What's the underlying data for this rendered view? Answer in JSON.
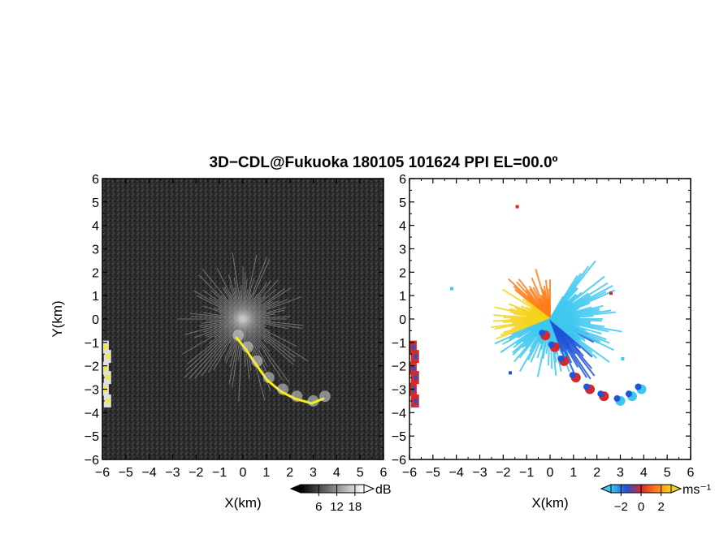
{
  "figure": {
    "title": "3D−CDL@Fukuoka 180105 101624 PPI EL=00.0º"
  },
  "chart_data": [
    {
      "type": "heatmap",
      "panel": "reflectivity",
      "xlabel": "X(km)",
      "ylabel": "Y(km)",
      "xlim": [
        -6,
        6
      ],
      "ylim": [
        -6,
        6
      ],
      "xticks": [
        -6,
        -5,
        -4,
        -3,
        -2,
        -1,
        0,
        1,
        2,
        3,
        4,
        5,
        6
      ],
      "yticks": [
        -6,
        -5,
        -4,
        -3,
        -2,
        -1,
        0,
        1,
        2,
        3,
        4,
        5,
        6
      ],
      "background_color": "#2b2b2b",
      "highlight_color": "#f5f014",
      "colorbar": {
        "unit": "dB",
        "ticks": [
          6,
          12,
          18
        ],
        "range": [
          0,
          21
        ],
        "colors": [
          "#000000",
          "#ffffff"
        ]
      },
      "features": {
        "radial_spokes_from_origin": true,
        "arc_points": [
          [
            -0.2,
            -0.7
          ],
          [
            0.2,
            -1.2
          ],
          [
            0.6,
            -1.8
          ],
          [
            1.1,
            -2.5
          ],
          [
            1.7,
            -3.0
          ],
          [
            2.3,
            -3.3
          ],
          [
            3.0,
            -3.5
          ],
          [
            3.5,
            -3.3
          ]
        ],
        "left_edge_points": [
          [
            -5.9,
            -1.2
          ],
          [
            -5.8,
            -1.6
          ],
          [
            -5.9,
            -2.1
          ],
          [
            -5.8,
            -2.5
          ],
          [
            -5.9,
            -3.0
          ],
          [
            -5.8,
            -3.5
          ]
        ]
      }
    },
    {
      "type": "heatmap",
      "panel": "doppler_velocity",
      "xlabel": "X(km)",
      "ylabel": "",
      "xlim": [
        -6,
        6
      ],
      "ylim": [
        -6,
        6
      ],
      "xticks": [
        -6,
        -5,
        -4,
        -3,
        -2,
        -1,
        0,
        1,
        2,
        3,
        4,
        5,
        6
      ],
      "yticks": [
        -6,
        -5,
        -4,
        -3,
        -2,
        -1,
        0,
        1,
        2,
        3,
        4,
        5,
        6
      ],
      "colorbar": {
        "unit": "ms⁻¹",
        "ticks": [
          -2,
          0,
          2
        ],
        "range": [
          -3,
          3
        ],
        "colors": [
          "#3ec8f0",
          "#1f54d8",
          "#d62a2a",
          "#ff7e1a",
          "#f5d21a"
        ]
      },
      "features": {
        "fan_from_origin": true,
        "arc_points": [
          [
            -0.2,
            -0.7
          ],
          [
            0.2,
            -1.2
          ],
          [
            0.6,
            -1.8
          ],
          [
            1.1,
            -2.5
          ],
          [
            1.7,
            -3.0
          ],
          [
            2.3,
            -3.3
          ],
          [
            3.0,
            -3.5
          ],
          [
            3.5,
            -3.3
          ],
          [
            3.9,
            -3.0
          ]
        ],
        "left_edge_points": [
          [
            -5.9,
            -1.2
          ],
          [
            -5.8,
            -1.6
          ],
          [
            -5.9,
            -2.1
          ],
          [
            -5.8,
            -2.5
          ],
          [
            -5.9,
            -3.0
          ],
          [
            -5.8,
            -3.5
          ]
        ],
        "isolated_points": [
          [
            -4.2,
            1.3
          ],
          [
            -1.4,
            4.8
          ],
          [
            -1.7,
            -2.3
          ],
          [
            2.6,
            1.1
          ],
          [
            3.1,
            -1.7
          ]
        ]
      }
    }
  ]
}
